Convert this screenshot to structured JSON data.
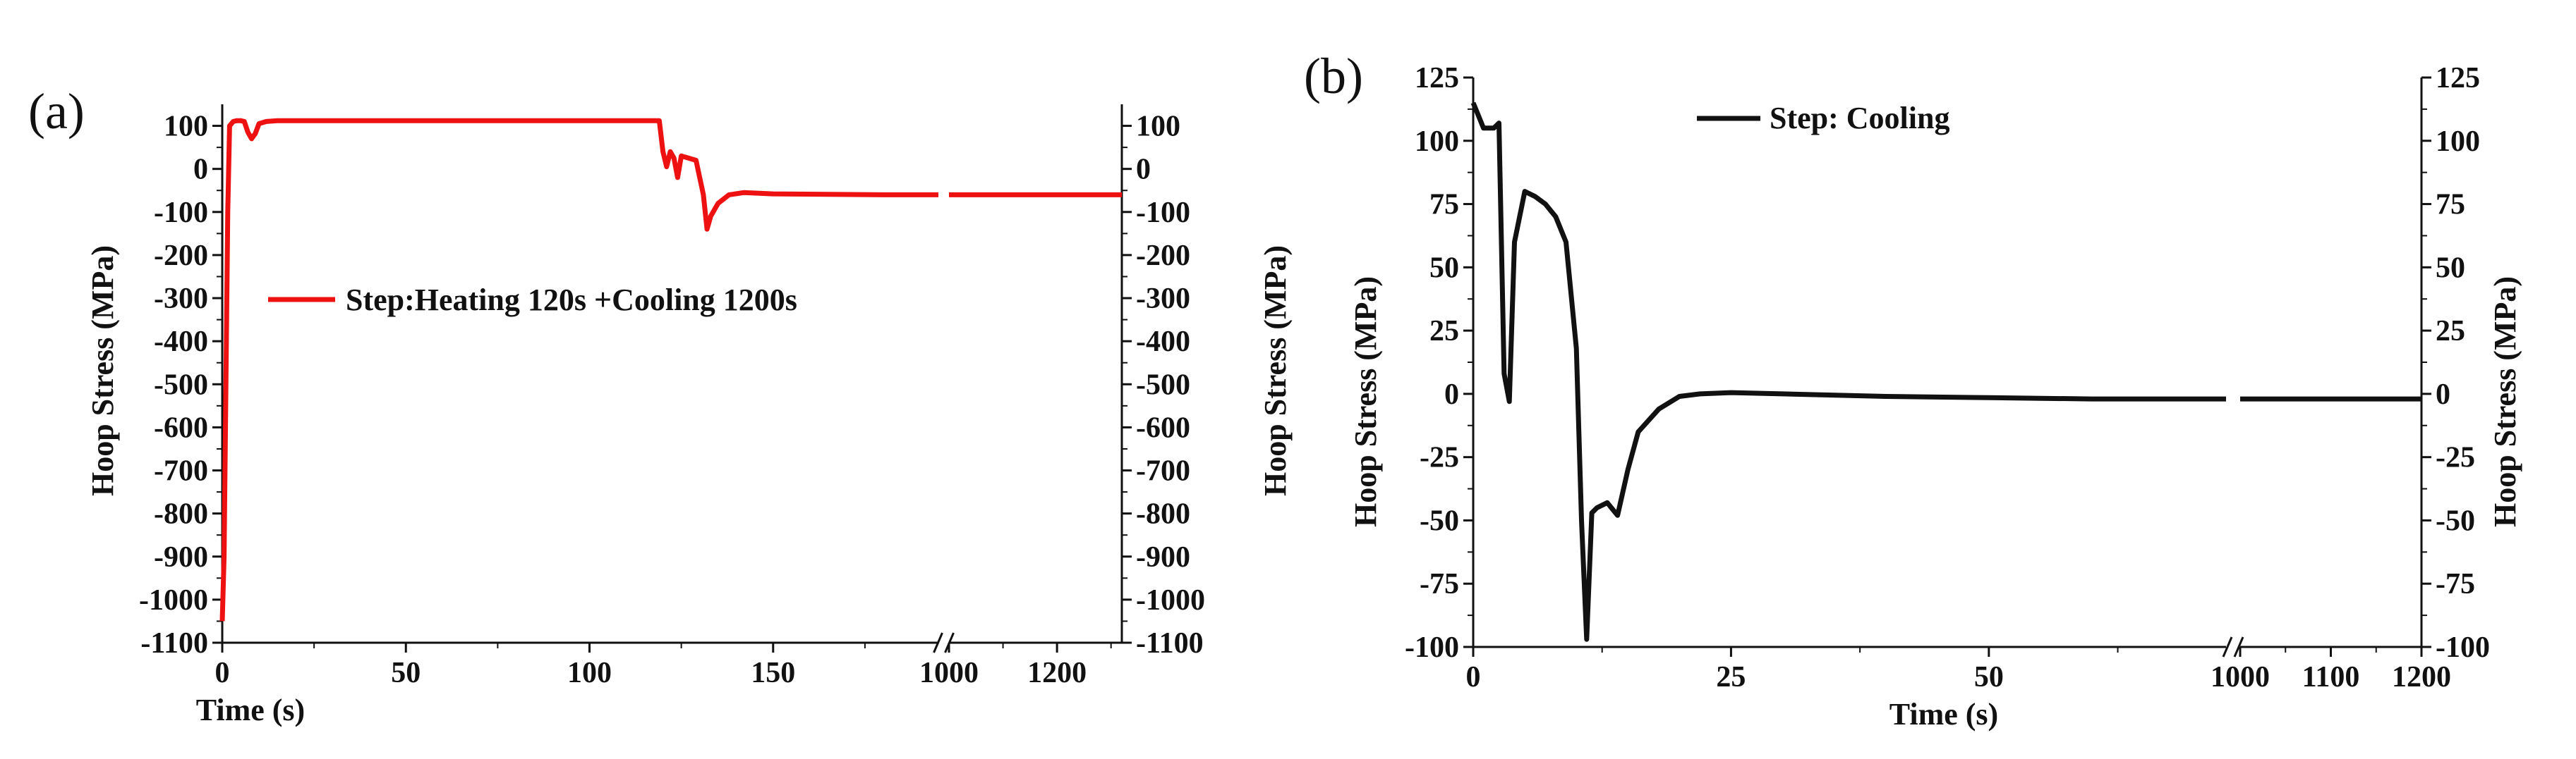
{
  "chart_data": [
    {
      "panel_label": "(a)",
      "type": "line",
      "xlabel": "Time (s)",
      "ylabel": "Hoop Stress (MPa)",
      "ylabel_right": "Hoop Stress (MPa)",
      "ylim": [
        -1100,
        150
      ],
      "yticks": [
        100,
        0,
        -100,
        -200,
        -300,
        -400,
        -500,
        -600,
        -700,
        -800,
        -900,
        -1000,
        -1100
      ],
      "x_segments": [
        {
          "range": [
            0,
            195
          ],
          "ticks": [
            0,
            50,
            100,
            150
          ]
        },
        {
          "range": [
            1000,
            1320
          ],
          "ticks": [
            1000,
            1200
          ]
        }
      ],
      "legend_position": "upper-left",
      "series": [
        {
          "name": "Step:Heating 120s +Cooling 1200s",
          "color": "#ee1111",
          "x": [
            0,
            0.5,
            1,
            1.5,
            2,
            3,
            4,
            5,
            6,
            7,
            8,
            9,
            10,
            12,
            15,
            30,
            60,
            100,
            119,
            120,
            121,
            122,
            123,
            124,
            125,
            127,
            129,
            131,
            132,
            133,
            135,
            138,
            142,
            150,
            180,
            195,
            1000,
            1320
          ],
          "y": [
            -1050,
            -900,
            -500,
            -100,
            100,
            110,
            112,
            112,
            110,
            85,
            70,
            82,
            105,
            110,
            112,
            112,
            112,
            112,
            112,
            40,
            5,
            40,
            25,
            -20,
            30,
            25,
            20,
            -60,
            -140,
            -110,
            -80,
            -60,
            -55,
            -58,
            -60,
            -60,
            -60,
            -60
          ]
        }
      ]
    },
    {
      "panel_label": "(b)",
      "type": "line",
      "xlabel": "Time (s)",
      "ylabel": "Hoop Stress (MPa)",
      "ylabel_right": "Hoop Stress (MPa)",
      "ylim": [
        -100,
        125
      ],
      "yticks": [
        125,
        100,
        75,
        50,
        25,
        0,
        -25,
        -50,
        -75,
        -100
      ],
      "yticks_right": [
        125,
        100,
        75,
        50,
        25,
        0,
        -25,
        -50,
        -75,
        -100
      ],
      "x_segments": [
        {
          "range": [
            0,
            73
          ],
          "ticks": [
            0,
            25,
            50
          ]
        },
        {
          "range": [
            1000,
            1200
          ],
          "ticks": [
            1000,
            1100,
            1200
          ]
        }
      ],
      "legend_position": "upper-left",
      "series": [
        {
          "name": "Step: Cooling",
          "color": "#111111",
          "x": [
            0,
            0.3,
            1,
            2,
            2.5,
            3,
            3.5,
            4,
            5,
            6,
            7,
            8,
            9,
            10,
            10.5,
            11,
            11.5,
            12,
            13,
            14,
            15,
            16,
            18,
            20,
            22,
            25,
            30,
            40,
            50,
            60,
            73,
            1000,
            1200
          ],
          "y": [
            115,
            112,
            105,
            105,
            107,
            8,
            -3,
            60,
            80,
            78,
            75,
            70,
            60,
            18,
            -50,
            -97,
            -47,
            -45,
            -43,
            -48,
            -30,
            -15,
            -6,
            -1,
            0,
            0.5,
            0,
            -1,
            -1.5,
            -2,
            -2,
            -2,
            -2
          ]
        }
      ]
    }
  ]
}
